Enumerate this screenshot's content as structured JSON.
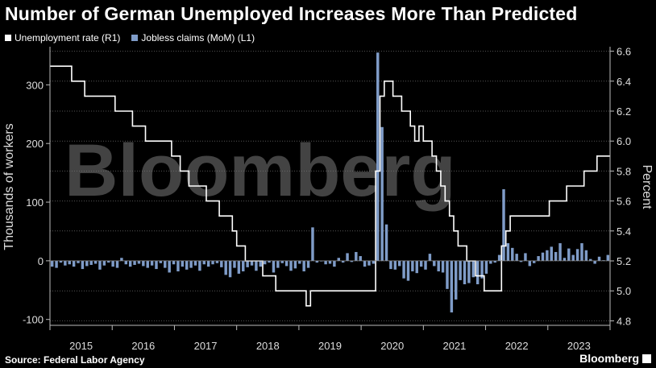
{
  "title": "Number of German Unemployed Increases More Than Predicted",
  "legend": [
    {
      "label": "Unemployment rate (R1)",
      "color": "#ffffff"
    },
    {
      "label": "Jobless claims (MoM) (L1)",
      "color": "#7f9cc8"
    }
  ],
  "source": "Source: Federal Labor Agency",
  "brand": "Bloomberg",
  "watermark": "Bloomberg",
  "chart_data": {
    "type": "bar+line",
    "x_tick_labels": [
      "2015",
      "2016",
      "2017",
      "2018",
      "2019",
      "2020",
      "2021",
      "2022",
      "2023"
    ],
    "left_axis": {
      "label": "Thousands of workers",
      "range": [
        -110,
        365
      ],
      "ticks": [
        -100,
        0,
        100,
        200,
        300
      ]
    },
    "right_axis": {
      "label": "Percent",
      "range": [
        4.77,
        6.63
      ],
      "ticks": [
        4.8,
        5.0,
        5.2,
        5.4,
        5.6,
        5.8,
        6.0,
        6.2,
        6.4,
        6.6
      ]
    },
    "x_start": 2015.0,
    "series": [
      {
        "name": "Jobless claims (MoM)",
        "axis": "left",
        "type": "bar",
        "color": "#7f9cc8",
        "values": [
          -10,
          -12,
          -3,
          -8,
          -6,
          -10,
          -4,
          -14,
          -9,
          -7,
          -5,
          -15,
          -8,
          -3,
          -10,
          -12,
          5,
          -6,
          -10,
          -7,
          -5,
          -9,
          -12,
          -8,
          -14,
          -4,
          -12,
          -20,
          -6,
          -18,
          -10,
          -15,
          -12,
          -8,
          -17,
          -6,
          -10,
          -6,
          -4,
          -11,
          -24,
          -28,
          -12,
          -22,
          -18,
          -11,
          -8,
          -17,
          -10,
          -6,
          -3,
          -20,
          -12,
          -4,
          -9,
          -17,
          -13,
          -5,
          -18,
          -12,
          57,
          -3,
          -1,
          -6,
          -5,
          -10,
          5,
          -3,
          13,
          -2,
          15,
          8,
          -10,
          -8,
          -5,
          355,
          228,
          62,
          -14,
          -15,
          -9,
          -30,
          -34,
          -18,
          -21,
          -10,
          -15,
          12,
          -9,
          -18,
          -20,
          -48,
          -88,
          -66,
          -33,
          -40,
          -38,
          -28,
          -40,
          -30,
          -22,
          -5,
          -3,
          10,
          122,
          30,
          22,
          12,
          -2,
          13,
          -9,
          -4,
          8,
          14,
          18,
          24,
          15,
          30,
          5,
          21,
          10,
          20,
          30,
          18,
          3,
          -5,
          7,
          1,
          10
        ]
      },
      {
        "name": "Unemployment rate",
        "axis": "right",
        "type": "line",
        "color": "#ffffff",
        "values": [
          6.5,
          6.5,
          6.5,
          6.5,
          6.5,
          6.4,
          6.4,
          6.4,
          6.3,
          6.3,
          6.3,
          6.3,
          6.3,
          6.3,
          6.3,
          6.2,
          6.2,
          6.2,
          6.2,
          6.1,
          6.1,
          6.1,
          6.0,
          6.0,
          6.0,
          6.0,
          6.0,
          6.0,
          5.9,
          5.9,
          5.8,
          5.8,
          5.7,
          5.7,
          5.7,
          5.7,
          5.6,
          5.6,
          5.6,
          5.5,
          5.5,
          5.5,
          5.4,
          5.3,
          5.3,
          5.2,
          5.2,
          5.2,
          5.2,
          5.1,
          5.1,
          5.1,
          5.0,
          5.0,
          5.0,
          5.0,
          5.0,
          5.0,
          5.0,
          4.9,
          5.0,
          5.0,
          5.0,
          5.0,
          5.0,
          5.0,
          5.0,
          5.0,
          5.0,
          5.0,
          5.0,
          5.0,
          5.0,
          5.0,
          5.0,
          5.8,
          6.3,
          6.4,
          6.4,
          6.3,
          6.3,
          6.2,
          6.2,
          6.1,
          6.0,
          6.1,
          6.0,
          6.0,
          5.9,
          5.8,
          5.7,
          5.6,
          5.5,
          5.4,
          5.3,
          5.3,
          5.2,
          5.2,
          5.1,
          5.1,
          5.0,
          5.0,
          5.0,
          5.0,
          5.3,
          5.4,
          5.5,
          5.5,
          5.5,
          5.5,
          5.5,
          5.5,
          5.5,
          5.5,
          5.5,
          5.6,
          5.6,
          5.6,
          5.6,
          5.7,
          5.7,
          5.7,
          5.7,
          5.8,
          5.8,
          5.8,
          5.9,
          5.9,
          5.9
        ]
      }
    ],
    "grid": "horizontal dashed",
    "legend_position": "top-left"
  }
}
